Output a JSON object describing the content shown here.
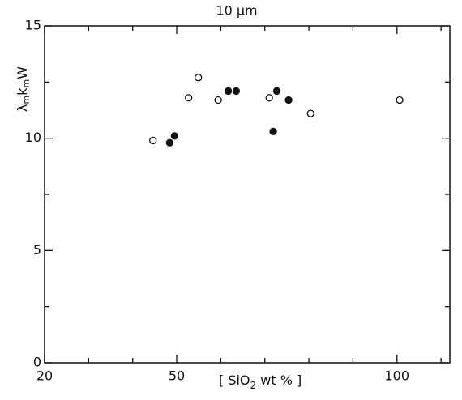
{
  "chart_data": {
    "type": "scatter",
    "title": "10 μm",
    "x_label_parts": [
      "[ SiO",
      "2",
      " wt % ]"
    ],
    "y_label_parts": [
      "λ",
      "m",
      "k",
      "m",
      "W"
    ],
    "xlim": [
      20,
      112
    ],
    "ylim": [
      0,
      15
    ],
    "xticks": [
      20,
      50,
      100
    ],
    "xminor": [
      30,
      40,
      60,
      70,
      80,
      90,
      110
    ],
    "yticks": [
      0,
      5,
      10,
      15
    ],
    "yminor": [
      2.5,
      7.5,
      12.5
    ],
    "series": [
      {
        "marker": "open",
        "color": "#111111",
        "x": [
          44.6,
          52.7,
          54.9,
          59.4,
          71.0,
          80.4,
          100.6
        ],
        "values": [
          9.9,
          11.8,
          12.7,
          11.7,
          11.8,
          11.1,
          11.7
        ]
      },
      {
        "marker": "filled",
        "color": "#111111",
        "x": [
          48.4,
          49.5,
          61.7,
          63.5,
          71.9,
          72.7,
          75.4
        ],
        "values": [
          9.8,
          10.1,
          12.1,
          12.1,
          10.3,
          12.1,
          11.7
        ]
      }
    ]
  }
}
